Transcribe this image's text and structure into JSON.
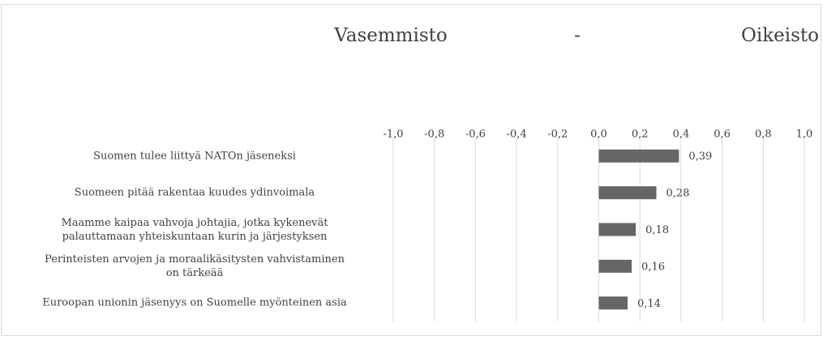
{
  "chart_data": {
    "type": "bar",
    "orientation": "horizontal",
    "title": [
      "Vasemmisto",
      "-",
      "Oikeisto"
    ],
    "categories": [
      "Suomen tulee liittyä NATOn jäseneksi",
      "Suomeen pitää rakentaa kuudes ydinvoimala",
      "Maamme kaipaa vahvoja johtajia, jotka kykenevät\npalauttamaan yhteiskuntaan kurin ja järjestyksen",
      "Perinteisten arvojen ja moraalikäsitysten vahvistaminen\non tärkeää",
      "Euroopan unionin jäsenyys on Suomelle myönteinen asia"
    ],
    "values": [
      0.39,
      0.28,
      0.18,
      0.16,
      0.14
    ],
    "value_labels": [
      "0,39",
      "0,28",
      "0,18",
      "0,16",
      "0,14"
    ],
    "color": "#666666",
    "xlim": [
      -1,
      1
    ],
    "xticks": [
      {
        "value": -1,
        "label": "-1,0"
      },
      {
        "value": -0.8,
        "label": "-0,8"
      },
      {
        "value": -0.6,
        "label": "-0,6"
      },
      {
        "value": -0.4,
        "label": "-0,4"
      },
      {
        "value": -0.2,
        "label": "-0,2"
      },
      {
        "value": 0,
        "label": "0,0"
      },
      {
        "value": 0.2,
        "label": "0,2"
      },
      {
        "value": 0.4,
        "label": "0,4"
      },
      {
        "value": 0.6,
        "label": "0,6"
      },
      {
        "value": 0.8,
        "label": "0,8"
      },
      {
        "value": 1,
        "label": "1,0"
      }
    ],
    "grid": true
  }
}
